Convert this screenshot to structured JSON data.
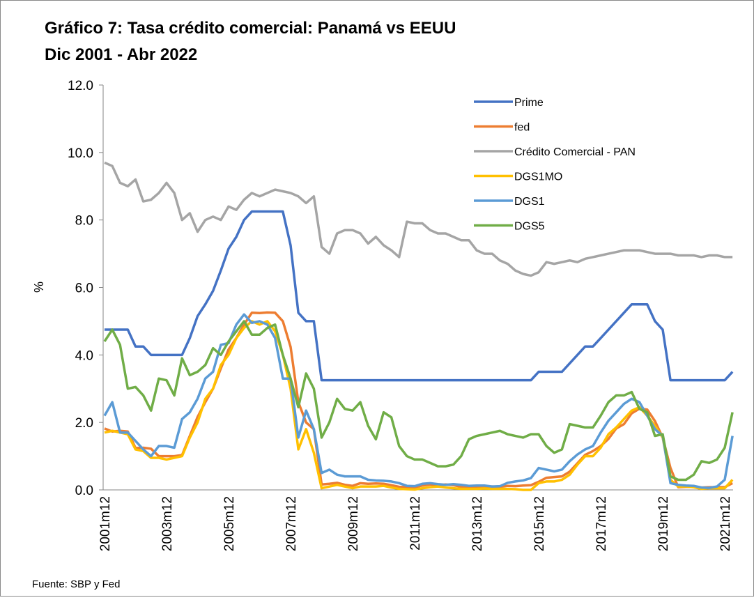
{
  "chart_data": {
    "type": "line",
    "title": "Gráfico 7:  Tasa crédito comercial: Panamá vs EEUU",
    "subtitle": "Dic 2001 -  Abr 2022",
    "y_label": "%",
    "source": "Fuente: SBP y Fed",
    "categories": [
      "2001m12",
      null,
      null,
      null,
      null,
      null,
      null,
      null,
      "2003m12",
      null,
      null,
      null,
      null,
      null,
      null,
      null,
      "2005m12",
      null,
      null,
      null,
      null,
      null,
      null,
      null,
      "2007m12",
      null,
      null,
      null,
      null,
      null,
      null,
      null,
      "2009m12",
      null,
      null,
      null,
      null,
      null,
      null,
      null,
      "2011m12",
      null,
      null,
      null,
      null,
      null,
      null,
      null,
      "2013m12",
      null,
      null,
      null,
      null,
      null,
      null,
      null,
      "2015m12",
      null,
      null,
      null,
      null,
      null,
      null,
      null,
      "2017m12",
      null,
      null,
      null,
      null,
      null,
      null,
      null,
      "2019m12",
      null,
      null,
      null,
      null,
      null,
      null,
      null,
      "2021m12",
      null
    ],
    "ylim": [
      0,
      12
    ],
    "yticks": [
      {
        "value": 0,
        "label": "0.0"
      },
      {
        "value": 2,
        "label": "2.0"
      },
      {
        "value": 4,
        "label": "4.0"
      },
      {
        "value": 6,
        "label": "6.0"
      },
      {
        "value": 8,
        "label": "8.0"
      },
      {
        "value": 10,
        "label": "10.0"
      },
      {
        "value": 12,
        "label": "12.0"
      }
    ],
    "legend": "upper right",
    "series": [
      {
        "name": "Prime",
        "color": "#4472c4",
        "values": [
          4.75,
          4.75,
          4.75,
          4.75,
          4.25,
          4.25,
          4.0,
          4.0,
          4.0,
          4.0,
          4.0,
          4.5,
          5.15,
          5.5,
          5.9,
          6.5,
          7.15,
          7.5,
          8.0,
          8.25,
          8.25,
          8.25,
          8.25,
          8.25,
          7.25,
          5.25,
          5.0,
          5.0,
          3.25,
          3.25,
          3.25,
          3.25,
          3.25,
          3.25,
          3.25,
          3.25,
          3.25,
          3.25,
          3.25,
          3.25,
          3.25,
          3.25,
          3.25,
          3.25,
          3.25,
          3.25,
          3.25,
          3.25,
          3.25,
          3.25,
          3.25,
          3.25,
          3.25,
          3.25,
          3.25,
          3.25,
          3.5,
          3.5,
          3.5,
          3.5,
          3.75,
          4.0,
          4.25,
          4.25,
          4.5,
          4.75,
          5.0,
          5.25,
          5.5,
          5.5,
          5.5,
          5.0,
          4.75,
          3.25,
          3.25,
          3.25,
          3.25,
          3.25,
          3.25,
          3.25,
          3.25,
          3.5
        ]
      },
      {
        "name": "fed",
        "color": "#ed7d31",
        "values": [
          1.82,
          1.73,
          1.75,
          1.73,
          1.24,
          1.25,
          1.22,
          1.0,
          1.0,
          1.0,
          1.03,
          1.6,
          2.16,
          2.6,
          3.0,
          3.6,
          4.16,
          4.5,
          4.9,
          5.25,
          5.24,
          5.26,
          5.25,
          5.0,
          4.24,
          2.6,
          2.0,
          1.8,
          0.16,
          0.18,
          0.21,
          0.15,
          0.12,
          0.2,
          0.18,
          0.19,
          0.18,
          0.14,
          0.09,
          0.08,
          0.07,
          0.13,
          0.16,
          0.14,
          0.16,
          0.14,
          0.09,
          0.08,
          0.09,
          0.08,
          0.1,
          0.09,
          0.12,
          0.11,
          0.13,
          0.14,
          0.24,
          0.36,
          0.38,
          0.4,
          0.54,
          0.79,
          1.04,
          1.15,
          1.3,
          1.51,
          1.82,
          1.95,
          2.27,
          2.41,
          2.38,
          2.04,
          1.55,
          0.65,
          0.08,
          0.09,
          0.09,
          0.07,
          0.08,
          0.08,
          0.08,
          0.2
        ]
      },
      {
        "name": "Crédito Comercial - PAN",
        "color": "#a5a5a5",
        "values": [
          9.7,
          9.6,
          9.1,
          9.0,
          9.2,
          8.55,
          8.6,
          8.8,
          9.1,
          8.8,
          8.0,
          8.2,
          7.65,
          8.0,
          8.1,
          8.0,
          8.4,
          8.3,
          8.6,
          8.8,
          8.7,
          8.8,
          8.9,
          8.85,
          8.8,
          8.7,
          8.5,
          8.7,
          7.2,
          7.0,
          7.6,
          7.7,
          7.7,
          7.6,
          7.3,
          7.5,
          7.25,
          7.1,
          6.9,
          7.95,
          7.9,
          7.9,
          7.7,
          7.6,
          7.6,
          7.5,
          7.4,
          7.4,
          7.1,
          7.0,
          7.0,
          6.8,
          6.7,
          6.5,
          6.4,
          6.35,
          6.45,
          6.75,
          6.7,
          6.75,
          6.8,
          6.75,
          6.85,
          6.9,
          6.95,
          7.0,
          7.05,
          7.1,
          7.1,
          7.1,
          7.05,
          7.0,
          7.0,
          7.0,
          6.95,
          6.95,
          6.95,
          6.9,
          6.95,
          6.95,
          6.9,
          6.9
        ]
      },
      {
        "name": "DGS1MO",
        "color": "#ffc000",
        "values": [
          1.7,
          1.75,
          1.7,
          1.65,
          1.2,
          1.15,
          0.95,
          0.95,
          0.9,
          0.95,
          1.0,
          1.55,
          2.0,
          2.7,
          3.0,
          3.7,
          4.0,
          4.5,
          4.8,
          5.0,
          4.9,
          5.0,
          4.7,
          4.0,
          3.0,
          1.2,
          1.8,
          1.1,
          0.05,
          0.1,
          0.15,
          0.1,
          0.05,
          0.1,
          0.1,
          0.1,
          0.12,
          0.07,
          0.03,
          0.02,
          0.01,
          0.05,
          0.08,
          0.1,
          0.07,
          0.05,
          0.03,
          0.03,
          0.03,
          0.04,
          0.03,
          0.03,
          0.03,
          0.02,
          0.0,
          0.0,
          0.2,
          0.25,
          0.25,
          0.3,
          0.45,
          0.75,
          1.0,
          1.0,
          1.25,
          1.65,
          1.85,
          2.1,
          2.35,
          2.45,
          2.2,
          1.9,
          1.55,
          0.3,
          0.1,
          0.1,
          0.08,
          0.03,
          0.05,
          0.05,
          0.05,
          0.3
        ]
      },
      {
        "name": "DGS1",
        "color": "#5b9bd5",
        "values": [
          2.2,
          2.6,
          1.7,
          1.7,
          1.45,
          1.2,
          1.0,
          1.3,
          1.3,
          1.25,
          2.1,
          2.3,
          2.7,
          3.3,
          3.5,
          4.3,
          4.35,
          4.9,
          5.2,
          4.95,
          5.0,
          4.9,
          4.5,
          3.3,
          3.3,
          1.55,
          2.35,
          1.8,
          0.5,
          0.6,
          0.45,
          0.4,
          0.4,
          0.4,
          0.3,
          0.28,
          0.27,
          0.25,
          0.2,
          0.12,
          0.11,
          0.18,
          0.2,
          0.17,
          0.15,
          0.17,
          0.15,
          0.12,
          0.13,
          0.13,
          0.1,
          0.11,
          0.21,
          0.25,
          0.28,
          0.35,
          0.65,
          0.6,
          0.55,
          0.6,
          0.85,
          1.05,
          1.2,
          1.3,
          1.7,
          2.05,
          2.3,
          2.55,
          2.7,
          2.6,
          2.2,
          1.8,
          1.6,
          0.2,
          0.15,
          0.13,
          0.12,
          0.07,
          0.06,
          0.1,
          0.3,
          1.6
        ]
      },
      {
        "name": "DGS5",
        "color": "#70ad47",
        "values": [
          4.4,
          4.75,
          4.3,
          3.0,
          3.05,
          2.8,
          2.35,
          3.3,
          3.25,
          2.8,
          3.9,
          3.4,
          3.5,
          3.7,
          4.2,
          4.0,
          4.4,
          4.7,
          5.0,
          4.6,
          4.6,
          4.8,
          4.9,
          4.0,
          3.3,
          2.45,
          3.45,
          3.0,
          1.55,
          2.0,
          2.7,
          2.4,
          2.35,
          2.6,
          1.9,
          1.5,
          2.3,
          2.15,
          1.3,
          1.0,
          0.9,
          0.9,
          0.8,
          0.7,
          0.7,
          0.75,
          1.0,
          1.5,
          1.6,
          1.65,
          1.7,
          1.75,
          1.65,
          1.6,
          1.55,
          1.65,
          1.65,
          1.3,
          1.1,
          1.2,
          1.95,
          1.9,
          1.85,
          1.85,
          2.2,
          2.6,
          2.8,
          2.8,
          2.9,
          2.4,
          2.3,
          1.6,
          1.65,
          0.4,
          0.3,
          0.3,
          0.45,
          0.85,
          0.8,
          0.9,
          1.25,
          2.3
        ]
      }
    ]
  }
}
